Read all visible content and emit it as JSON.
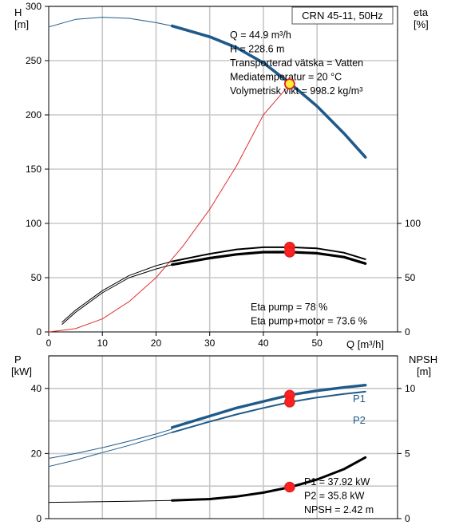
{
  "chart_data": [
    {
      "type": "line",
      "title": "CRN 45-11, 50Hz",
      "xlabel": "Q [m³/h]",
      "ylabel_left": [
        "H",
        "[m]"
      ],
      "ylabel_right": [
        "eta",
        "[%]"
      ],
      "xlim": [
        0,
        65
      ],
      "ylim_left": [
        0,
        300
      ],
      "ylim_right": [
        0,
        300
      ],
      "x_ticks": [
        "0",
        "10",
        "20",
        "30",
        "40",
        "50"
      ],
      "y_ticks_left": [
        "0",
        "50",
        "100",
        "150",
        "200",
        "250",
        "300"
      ],
      "y_ticks_right": [
        "0",
        "50",
        "100"
      ],
      "grid": true,
      "series": [
        {
          "key": "h_ext",
          "color": "#1f5a8a",
          "x": [
            0,
            5,
            10,
            15,
            20,
            23
          ],
          "y": [
            281,
            288,
            290,
            289,
            285,
            282
          ]
        },
        {
          "key": "h",
          "color": "#1f5a8a",
          "x": [
            23,
            30,
            35,
            40,
            45,
            50,
            55,
            59
          ],
          "y": [
            282,
            272,
            262,
            248,
            229,
            208,
            183,
            161
          ]
        },
        {
          "key": "system",
          "color": "#e03030",
          "x": [
            0,
            5,
            10,
            15,
            20,
            25,
            30,
            35,
            40,
            45
          ],
          "y": [
            0,
            3,
            12,
            28,
            50,
            79,
            113,
            153,
            200,
            228.6
          ]
        },
        {
          "key": "eta_p_ext",
          "color": "#000000",
          "x": [
            2.5,
            5,
            10,
            15,
            20,
            23
          ],
          "y": [
            9,
            20,
            38,
            52,
            61,
            65
          ]
        },
        {
          "key": "eta_p",
          "color": "#000000",
          "x": [
            23,
            30,
            35,
            40,
            45,
            50,
            55,
            59
          ],
          "y": [
            65,
            72,
            76,
            78,
            78,
            77,
            73,
            67
          ]
        },
        {
          "key": "eta_pm_ext",
          "color": "#000000",
          "x": [
            2.5,
            5,
            10,
            15,
            20,
            23
          ],
          "y": [
            7,
            18,
            36,
            50,
            58,
            62
          ]
        },
        {
          "key": "eta_pm",
          "color": "#000000",
          "x": [
            23,
            30,
            35,
            40,
            45,
            50,
            55,
            59
          ],
          "y": [
            62,
            68,
            71.5,
            73.5,
            73.6,
            72.5,
            69,
            63
          ]
        }
      ],
      "points": [
        {
          "key": "duty",
          "x": 44.9,
          "y": 228.6,
          "fill": "#ffee33",
          "stroke": "#e02020"
        },
        {
          "key": "eta_p_pt",
          "x": 44.9,
          "y": 78,
          "fill": "#ff2020",
          "stroke": "#e02020"
        },
        {
          "key": "eta_pm_pt",
          "x": 44.9,
          "y": 73.6,
          "fill": "#ff2020",
          "stroke": "#e02020"
        }
      ],
      "info_lines": [
        "Q = 44.9 m³/h",
        "H = 228.6 m",
        "Transporterad vätska = Vatten",
        "Mediatemperatur = 20 °C",
        "Volymetrisk vikt = 998.2 kg/m³"
      ],
      "eta_lines": [
        "Eta pump = 78 %",
        "Eta pump+motor = 73.6 %"
      ]
    },
    {
      "type": "line",
      "ylabel_left": [
        "P",
        "[kW]"
      ],
      "ylabel_right": [
        "NPSH",
        "[m]"
      ],
      "xlim": [
        0,
        65
      ],
      "ylim_left": [
        0,
        50
      ],
      "ylim_right": [
        0,
        12.5
      ],
      "y_ticks_left": [
        "0",
        "20",
        "40"
      ],
      "y_ticks_right": [
        "0",
        "5",
        "10"
      ],
      "grid": true,
      "series": [
        {
          "key": "p1_ext",
          "axis": "left",
          "color": "#1f5a8a",
          "x": [
            0,
            5,
            10,
            15,
            20,
            23
          ],
          "y": [
            18.5,
            20,
            21.8,
            23.8,
            26,
            27.5
          ]
        },
        {
          "key": "p1",
          "axis": "left",
          "color": "#1f5a8a",
          "x": [
            23,
            30,
            35,
            40,
            45,
            50,
            55,
            59
          ],
          "y": [
            28,
            31.5,
            34,
            36,
            38,
            39.3,
            40.3,
            41
          ],
          "label": "P1"
        },
        {
          "key": "p2_ext",
          "axis": "left",
          "color": "#1f5a8a",
          "x": [
            0,
            5,
            10,
            15,
            20,
            23
          ],
          "y": [
            16,
            18,
            20.3,
            22.5,
            25,
            26.5
          ]
        },
        {
          "key": "p2",
          "axis": "left",
          "color": "#1f5a8a",
          "x": [
            23,
            30,
            35,
            40,
            45,
            50,
            55,
            59
          ],
          "y": [
            26.5,
            29.8,
            32,
            34,
            35.8,
            37.2,
            38.3,
            39
          ],
          "label": "P2"
        },
        {
          "key": "npsh_ext",
          "axis": "right",
          "color": "#000000",
          "x": [
            0,
            5,
            10,
            15,
            20,
            23
          ],
          "y": [
            1.25,
            1.27,
            1.3,
            1.33,
            1.37,
            1.4
          ]
        },
        {
          "key": "npsh",
          "axis": "right",
          "color": "#000000",
          "x": [
            23,
            30,
            35,
            40,
            45,
            50,
            55,
            59
          ],
          "y": [
            1.4,
            1.5,
            1.7,
            2,
            2.42,
            3,
            3.8,
            4.7
          ]
        }
      ],
      "points": [
        {
          "key": "p1_pt",
          "axis": "left",
          "x": 44.9,
          "y": 37.92
        },
        {
          "key": "p2_pt",
          "axis": "left",
          "x": 44.9,
          "y": 35.8
        },
        {
          "key": "npsh_pt",
          "axis": "right",
          "x": 44.9,
          "y": 2.42
        }
      ],
      "info_lines": [
        "P1 = 37.92 kW",
        "P2 = 35.8 kW",
        "NPSH = 2.42 m"
      ]
    }
  ]
}
